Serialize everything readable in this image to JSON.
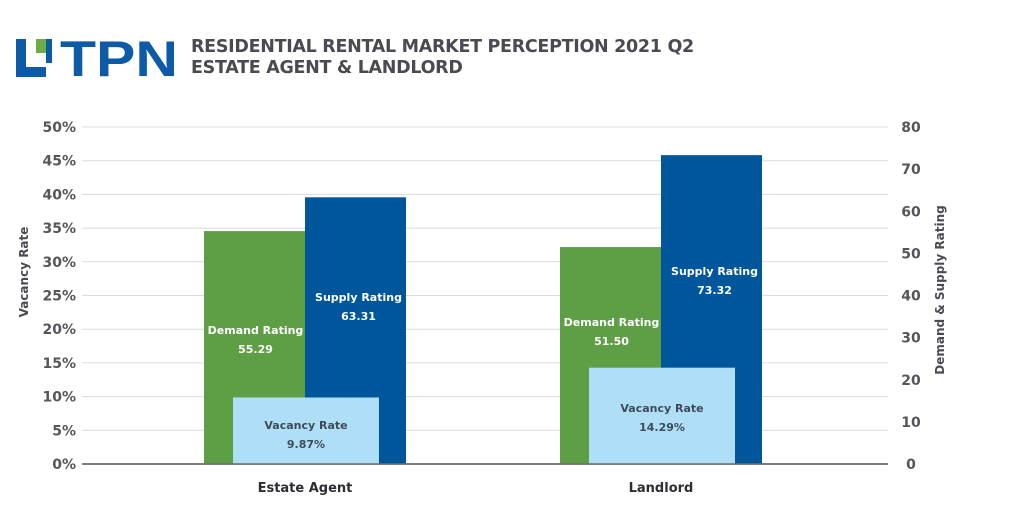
{
  "header": {
    "logo_text": "TPN",
    "title_line1": "RESIDENTIAL RENTAL MARKET PERCEPTION 2021 Q2",
    "title_line2": "ESTATE AGENT & LANDLORD"
  },
  "colors": {
    "demand": "#5e9e44",
    "supply": "#00569a",
    "vacancy": "#aedff7",
    "brand_blue": "#0d5aa7",
    "brand_green": "#6aae45",
    "grid": "#dcdcdc",
    "baseline": "#6d6d6d"
  },
  "chart_data": {
    "type": "bar",
    "title": "RESIDENTIAL RENTAL MARKET PERCEPTION 2021 Q2 - ESTATE AGENT & LANDLORD",
    "categories": [
      "Estate Agent",
      "Landlord"
    ],
    "series": [
      {
        "name": "Demand Rating",
        "axis": "right",
        "values": [
          55.29,
          51.5
        ],
        "labels": [
          "55.29",
          "51.50"
        ]
      },
      {
        "name": "Supply Rating",
        "axis": "right",
        "values": [
          63.31,
          73.32
        ],
        "labels": [
          "63.31",
          "73.32"
        ]
      },
      {
        "name": "Vacancy Rate",
        "axis": "left",
        "values": [
          9.87,
          14.29
        ],
        "labels": [
          "9.87%",
          "14.29%"
        ]
      }
    ],
    "ylabel_left": "Vacancy Rate",
    "ylabel_right": "Demand & Supply Rating",
    "ylim_left": [
      0,
      50
    ],
    "ylim_right": [
      0,
      80
    ],
    "yticks_left": [
      "0%",
      "5%",
      "10%",
      "15%",
      "20%",
      "25%",
      "30%",
      "35%",
      "40%",
      "45%",
      "50%"
    ],
    "yticks_right": [
      "0",
      "10",
      "20",
      "30",
      "40",
      "50",
      "60",
      "70",
      "80"
    ],
    "grid": true,
    "legend": "none (inline bar labels)"
  }
}
